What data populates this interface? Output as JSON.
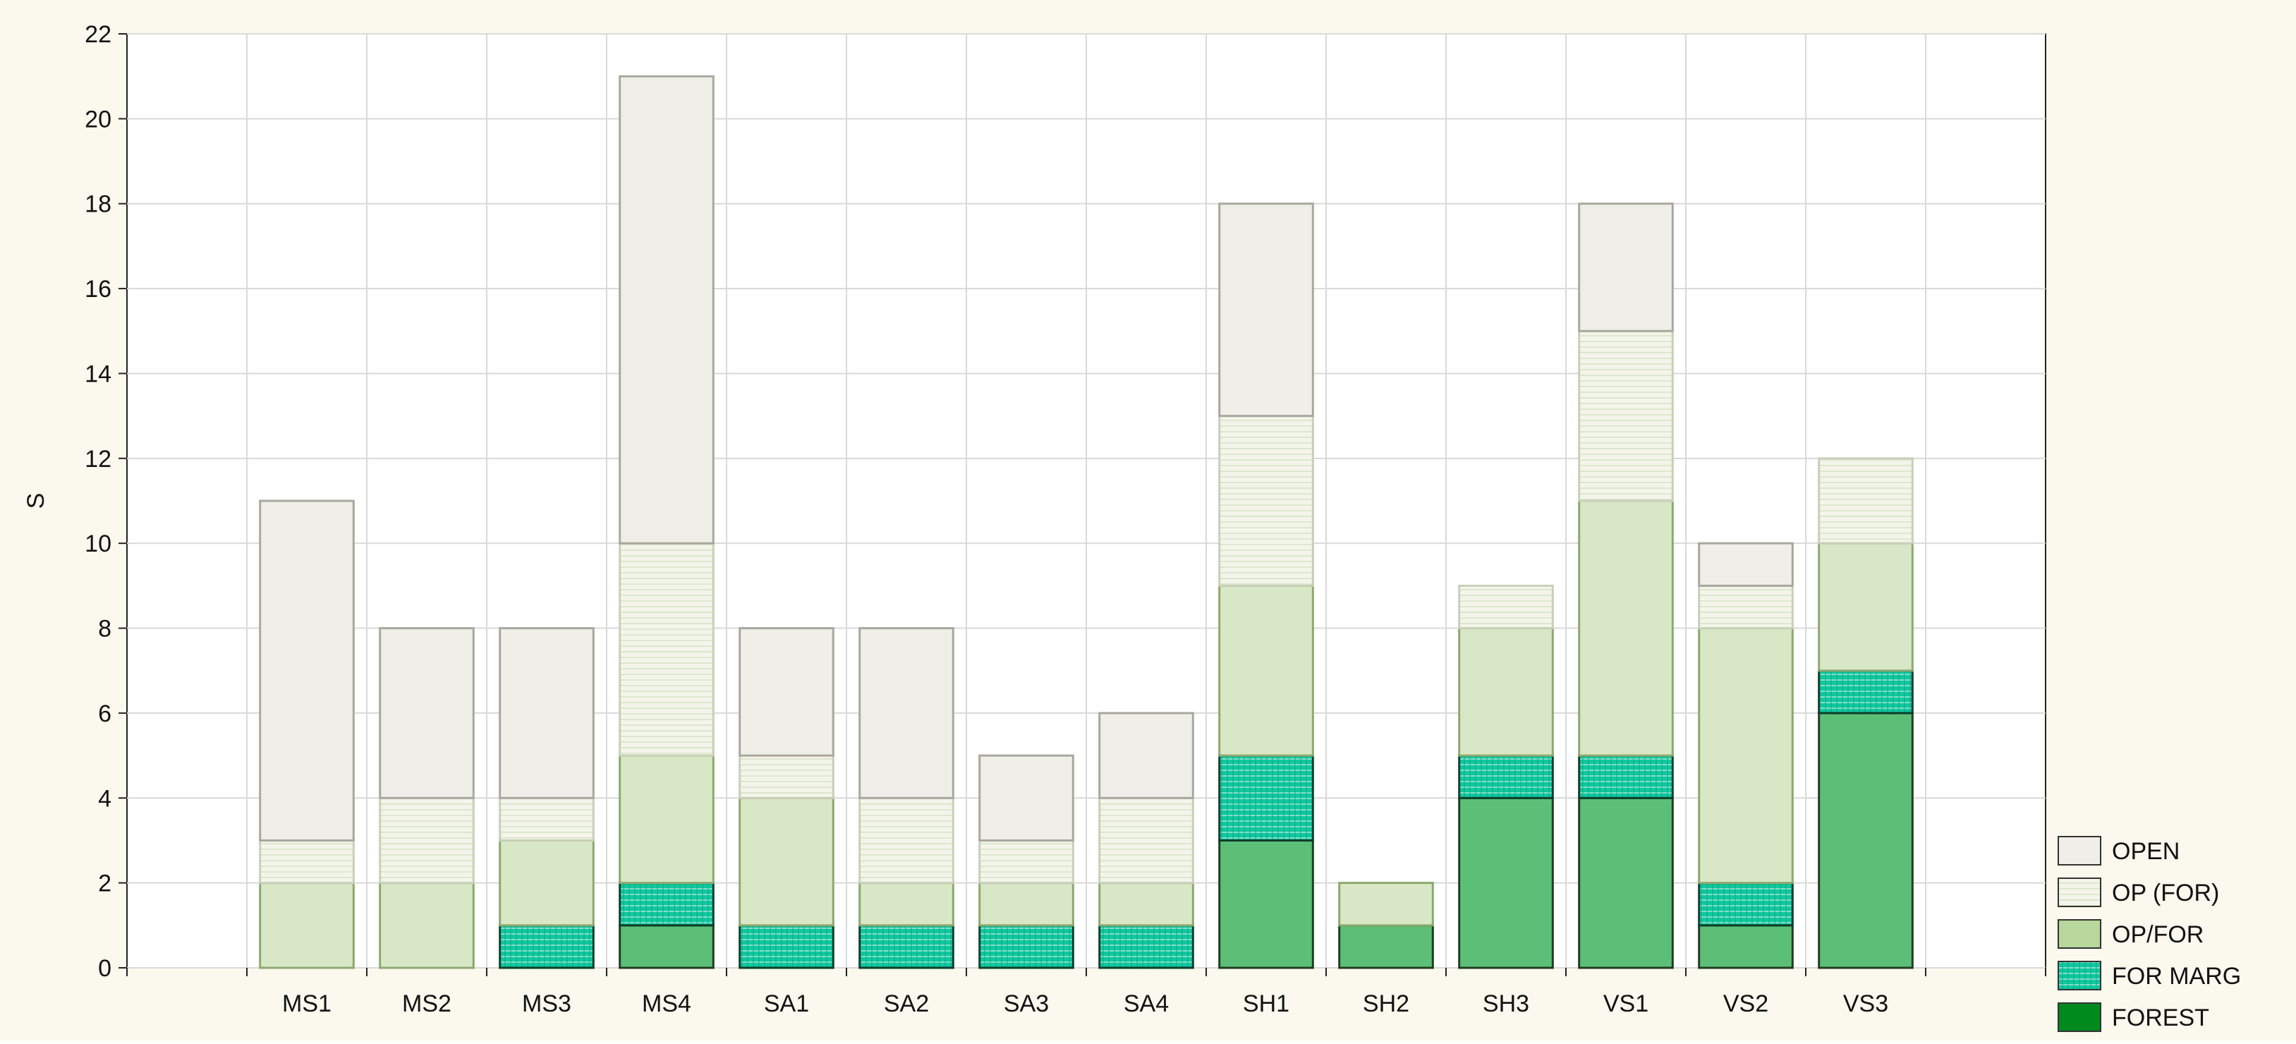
{
  "chart_data": {
    "type": "bar",
    "stacked": true,
    "title": "",
    "xlabel": "",
    "ylabel": "S",
    "ylim": [
      0,
      22
    ],
    "yticks": [
      0,
      2,
      4,
      6,
      8,
      10,
      12,
      14,
      16,
      18,
      20,
      22
    ],
    "grid": true,
    "legend_position": "bottom-right",
    "categories": [
      "MS1",
      "MS2",
      "MS3",
      "MS4",
      "SA1",
      "SA2",
      "SA3",
      "SA4",
      "SH1",
      "SH2",
      "SH3",
      "VS1",
      "VS2",
      "VS3"
    ],
    "series": [
      {
        "name": "FOREST",
        "color": "#5cbf78",
        "values": [
          0,
          0,
          0,
          1,
          0,
          0,
          0,
          0,
          3,
          1,
          4,
          4,
          1,
          6
        ]
      },
      {
        "name": "FOR MARG",
        "color": "#1fb589",
        "values": [
          0,
          0,
          1,
          1,
          1,
          1,
          1,
          1,
          2,
          0,
          1,
          1,
          1,
          1
        ]
      },
      {
        "name": "OP/FOR",
        "color": "#d8e8c6",
        "values": [
          2,
          2,
          2,
          3,
          3,
          1,
          1,
          1,
          4,
          1,
          3,
          6,
          6,
          3
        ]
      },
      {
        "name": "OP (FOR)",
        "color": "#f1f3e8",
        "values": [
          1,
          2,
          1,
          5,
          1,
          2,
          1,
          2,
          4,
          0,
          1,
          4,
          1,
          2
        ]
      },
      {
        "name": "OPEN",
        "color": "#efeee8",
        "values": [
          8,
          4,
          4,
          11,
          3,
          4,
          2,
          2,
          5,
          0,
          0,
          3,
          1,
          0
        ]
      }
    ],
    "legend": [
      {
        "name": "OPEN",
        "color": "#efeee8"
      },
      {
        "name": "OP (FOR)",
        "color": "#f3f5ea"
      },
      {
        "name": "OP/FOR",
        "color": "#b7d79c"
      },
      {
        "name": "FOR MARG",
        "color": "#15c7a0"
      },
      {
        "name": "FOREST",
        "color": "#008a1e"
      }
    ]
  }
}
